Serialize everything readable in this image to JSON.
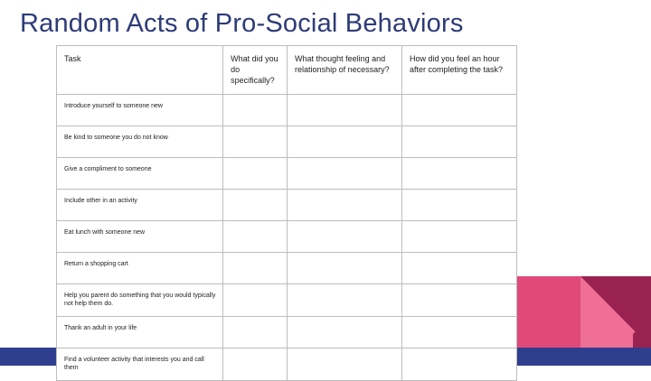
{
  "slide": {
    "title": "Random Acts of Pro-Social Behaviors"
  },
  "table": {
    "headers": [
      "Task",
      "What did you do specifically?",
      "What thought feeling and relationship of necessary?",
      "How did you feel an hour after completing the task?"
    ],
    "rows": [
      "Introduce yourself to someone new",
      "Be kind to someone you do not know",
      "Give a compliment to someone",
      "Include other in an activity",
      "Eat lunch with someone new",
      "Return a shopping cart",
      "Help you parent do something that you would typically not help them do.",
      "Thank an adult in your life",
      "Find a volunteer activity that interests you and call them"
    ]
  },
  "theme": {
    "title_color": "#2e3b78",
    "bar_color": "#2f3e8f",
    "pink_light": "#ef6f97",
    "pink_mid": "#e0497a",
    "maroon": "#9a2250"
  }
}
